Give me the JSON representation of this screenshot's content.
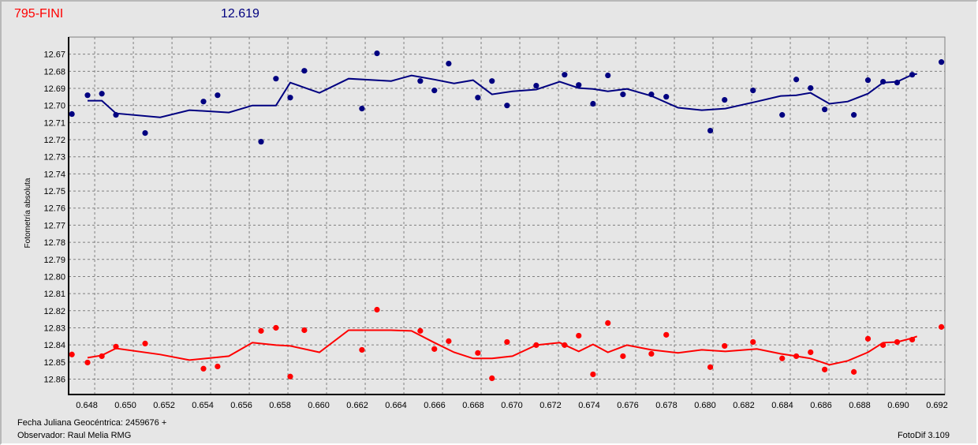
{
  "header": {
    "object_name": "795-FINI",
    "reference_value": "12.619"
  },
  "footer": {
    "date_label": "Fecha Juliana Geocéntrica: 2459676 +",
    "observer": "Observador: Raul Melia RMG",
    "software": "FotoDif 3.109"
  },
  "chart_data": {
    "type": "scatter",
    "title": "795-FINI",
    "xlabel": "Fecha Juliana Geocéntrica: 2459676 +",
    "ylabel": "Fotometría absoluta",
    "xlim": [
      0.64665,
      0.692
    ],
    "ylim": [
      12.66,
      12.869
    ],
    "y_inverted": true,
    "grid": true,
    "x_ticks": [
      "0.648",
      "0.650",
      "0.652",
      "0.654",
      "0.656",
      "0.658",
      "0.660",
      "0.662",
      "0.664",
      "0.666",
      "0.668",
      "0.670",
      "0.672",
      "0.674",
      "0.676",
      "0.678",
      "0.680",
      "0.682",
      "0.684",
      "0.686",
      "0.688",
      "0.690",
      "0.692"
    ],
    "y_ticks": [
      "12.67",
      "12.68",
      "12.69",
      "12.70",
      "12.71",
      "12.72",
      "12.73",
      "12.74",
      "12.75",
      "12.76",
      "12.77",
      "12.78",
      "12.79",
      "12.80",
      "12.81",
      "12.82",
      "12.83",
      "12.84",
      "12.85",
      "12.86"
    ],
    "points_x": [
      0.64682,
      0.64763,
      0.64837,
      0.6491,
      0.65061,
      0.65363,
      0.65436,
      0.65661,
      0.65738,
      0.65812,
      0.65885,
      0.66183,
      0.66261,
      0.66485,
      0.66558,
      0.66632,
      0.66783,
      0.66856,
      0.66934,
      0.67085,
      0.67232,
      0.67305,
      0.67379,
      0.67456,
      0.67534,
      0.67681,
      0.67758,
      0.67986,
      0.6806,
      0.68207,
      0.68358,
      0.68431,
      0.68505,
      0.68578,
      0.68729,
      0.68802,
      0.6888,
      0.68953,
      0.69031,
      0.69182
    ],
    "line_x": [
      0.64763,
      0.64837,
      0.6491,
      0.65139,
      0.6529,
      0.65494,
      0.65616,
      0.65738,
      0.65812,
      0.65963,
      0.66114,
      0.66334,
      0.6644,
      0.66558,
      0.6666,
      0.66758,
      0.66856,
      0.66962,
      0.67085,
      0.67207,
      0.67305,
      0.67379,
      0.67456,
      0.67554,
      0.67681,
      0.67819,
      0.67942,
      0.68064,
      0.68227,
      0.6835,
      0.68431,
      0.68505,
      0.68603,
      0.68697,
      0.68802,
      0.6888,
      0.68953,
      0.69031,
      0.69056
    ],
    "series": [
      {
        "name": "variable",
        "color": "#000080",
        "points_y": [
          12.705,
          12.694,
          12.6931,
          12.7055,
          12.7161,
          12.6977,
          12.694,
          12.7212,
          12.6843,
          12.6954,
          12.6797,
          12.7018,
          12.6695,
          12.6857,
          12.6912,
          12.6755,
          12.6954,
          12.6857,
          12.7,
          12.6884,
          12.682,
          12.688,
          12.699,
          12.6824,
          12.6935,
          12.6935,
          12.6949,
          12.7147,
          12.6967,
          12.6912,
          12.7055,
          12.6848,
          12.6898,
          12.7023,
          12.7055,
          12.6852,
          12.6861,
          12.6866,
          12.682,
          12.6746
        ],
        "line_y": [
          12.6972,
          12.6972,
          12.7046,
          12.7069,
          12.7027,
          12.7041,
          12.7,
          12.7,
          12.6866,
          12.6926,
          12.6843,
          12.6857,
          12.6824,
          12.6848,
          12.6871,
          12.6852,
          12.6935,
          12.6917,
          12.6907,
          12.6861,
          12.6898,
          12.6903,
          12.6917,
          12.6903,
          12.6944,
          12.7013,
          12.7027,
          12.7018,
          12.6977,
          12.6944,
          12.694,
          12.6926,
          12.699,
          12.6977,
          12.6931,
          12.6866,
          12.6861,
          12.682,
          12.6815
        ]
      },
      {
        "name": "comparison",
        "color": "#ff0000",
        "points_y": [
          12.8456,
          12.8503,
          12.8466,
          12.841,
          12.8392,
          12.8539,
          12.8526,
          12.8318,
          12.83,
          12.8585,
          12.8314,
          12.8429,
          12.8194,
          12.8318,
          12.8424,
          12.8378,
          12.8447,
          12.8595,
          12.8383,
          12.8401,
          12.8401,
          12.8346,
          12.8572,
          12.8272,
          12.8466,
          12.8452,
          12.8341,
          12.853,
          12.8406,
          12.8383,
          12.8479,
          12.8466,
          12.8443,
          12.8544,
          12.8558,
          12.8364,
          12.8401,
          12.8383,
          12.8369,
          12.8295
        ],
        "line_y": [
          12.8475,
          12.8461,
          12.842,
          12.8456,
          12.8489,
          12.8466,
          12.8387,
          12.8401,
          12.8406,
          12.8443,
          12.8314,
          12.8314,
          12.8318,
          12.8387,
          12.8443,
          12.8479,
          12.8479,
          12.8466,
          12.8401,
          12.8387,
          12.8438,
          12.8397,
          12.8443,
          12.8401,
          12.8429,
          12.8447,
          12.8429,
          12.8438,
          12.8424,
          12.8452,
          12.8466,
          12.8479,
          12.8516,
          12.8493,
          12.8443,
          12.8387,
          12.8383,
          12.836,
          12.835
        ]
      }
    ]
  }
}
